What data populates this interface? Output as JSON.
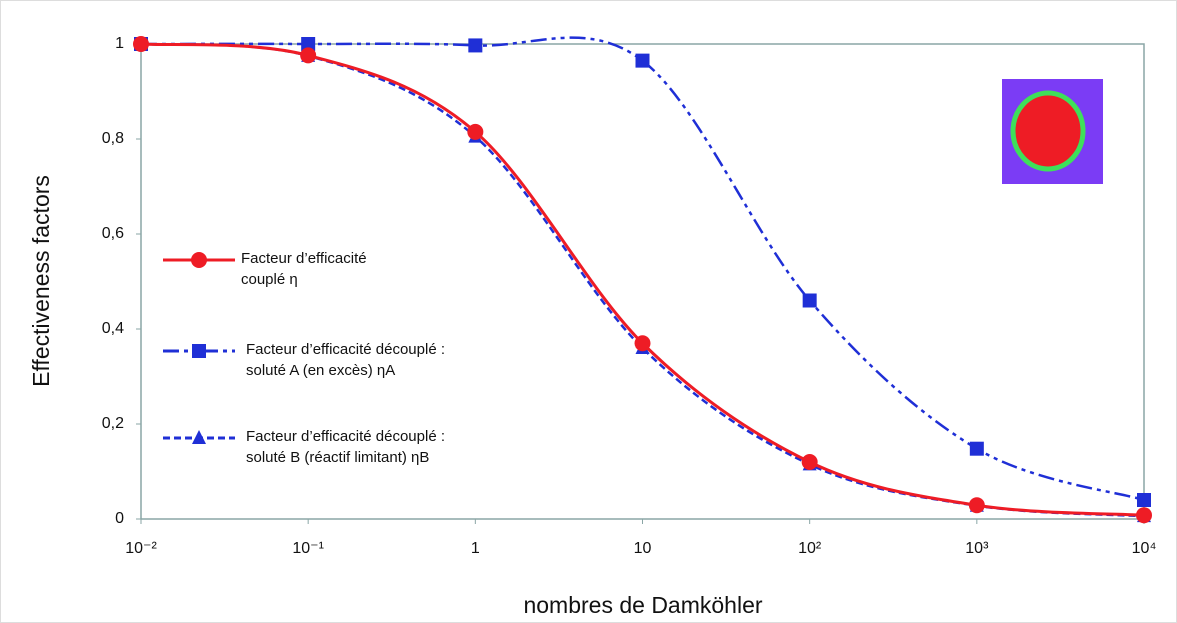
{
  "chart_data": {
    "type": "line",
    "x_label": "nombres de Damköhler",
    "y_label": "Effectiveness factors",
    "x": [
      0.01,
      0.1,
      1,
      10,
      100,
      1000,
      10000
    ],
    "xscale": "log",
    "xlim": [
      0.01,
      10000
    ],
    "xticks": [
      {
        "value": 0.01,
        "label": "10⁻²"
      },
      {
        "value": 0.1,
        "label": "10⁻¹"
      },
      1,
      10,
      {
        "value": 100,
        "label": "10²"
      },
      {
        "value": 1000,
        "label": "10³"
      },
      {
        "value": 10000,
        "label": "10⁴"
      }
    ],
    "ylim": [
      0,
      1
    ],
    "yticks": [
      0,
      {
        "value": 0.2,
        "label": "0,2"
      },
      {
        "value": 0.4,
        "label": "0,4"
      },
      {
        "value": 0.6,
        "label": "0,6"
      },
      {
        "value": 0.8,
        "label": "0,8"
      },
      1
    ],
    "legend": "left",
    "series": [
      {
        "name": "Facteur d’efficacité\ncouplé η",
        "color": "#ee1c25",
        "linestyle": "solid",
        "marker": "circle",
        "values": [
          1,
          0.976,
          0.815,
          0.37,
          0.12,
          0.029,
          0.008
        ]
      },
      {
        "name": "Facteur d’efficacité découplé :\nsoluté A (en excès) ηA",
        "color": "#1f2fd6",
        "linestyle": "dashdotdot",
        "marker": "square",
        "values": [
          1,
          1,
          0.997,
          0.965,
          0.46,
          0.148,
          0.04
        ]
      },
      {
        "name": "Facteur d’efficacité découplé :\nsoluté B (réactif limitant) ηB",
        "color": "#1f2fd6",
        "linestyle": "dashed",
        "marker": "triangle",
        "values": [
          1,
          0.975,
          0.805,
          0.36,
          0.115,
          0.028,
          0.006
        ]
      }
    ]
  }
}
